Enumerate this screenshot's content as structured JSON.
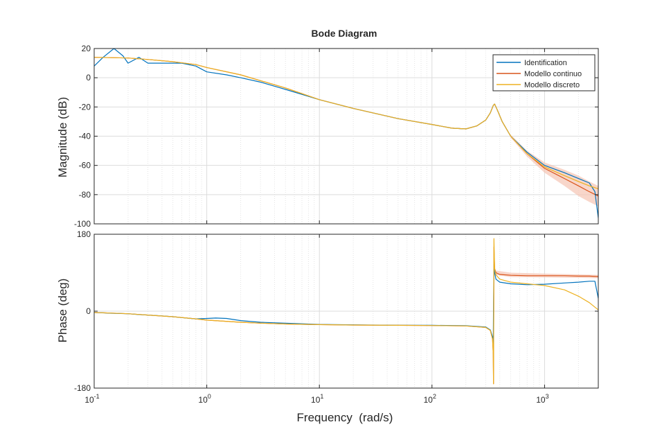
{
  "chart_data": {
    "type": "line",
    "title": "Bode Diagram",
    "xlabel": "Frequency  (rad/s)",
    "x_scale": "log",
    "xlim": [
      0.1,
      3000
    ],
    "x_ticks": [
      {
        "value": 0.1,
        "base": "10",
        "exp": "-1"
      },
      {
        "value": 1,
        "base": "10",
        "exp": "0"
      },
      {
        "value": 10,
        "base": "10",
        "exp": "1"
      },
      {
        "value": 100,
        "base": "10",
        "exp": "2"
      },
      {
        "value": 1000,
        "base": "10",
        "exp": "3"
      }
    ],
    "grid": true,
    "legend_position": "top-right",
    "colors": {
      "Identification": "#0072bd",
      "Modello continuo": "#d95319",
      "Modello discreto": "#edb120",
      "confidence": "#f5c4b4"
    },
    "series_names": [
      "Identification",
      "Modello continuo",
      "Modello discreto"
    ],
    "magnitude": {
      "ylabel": "Magnitude (dB)",
      "ylim": [
        -100,
        20
      ],
      "y_ticks": [
        "20",
        "0",
        "-20",
        "-40",
        "-60",
        "-80",
        "-100"
      ],
      "y_tick_values": [
        20,
        0,
        -20,
        -40,
        -60,
        -80,
        -100
      ],
      "series": [
        {
          "name": "Identification",
          "x": [
            0.1,
            0.12,
            0.15,
            0.18,
            0.2,
            0.25,
            0.3,
            0.4,
            0.5,
            0.6,
            0.8,
            1,
            1.5,
            2,
            3,
            5,
            10,
            20,
            50,
            100,
            150,
            200,
            250,
            300,
            330,
            350,
            360,
            380,
            420,
            500,
            700,
            1000,
            1500,
            2000,
            2500,
            2800,
            3000
          ],
          "y": [
            8,
            14,
            20,
            15,
            10,
            14,
            10,
            10,
            10,
            10,
            8,
            4,
            2,
            0,
            -3,
            -8,
            -15,
            -21,
            -28,
            -32,
            -34.5,
            -35,
            -33,
            -29,
            -24,
            -19,
            -18,
            -22,
            -30,
            -40,
            -51,
            -60,
            -65,
            -69,
            -72,
            -78,
            -96
          ]
        },
        {
          "name": "Modello continuo",
          "x": [
            0.1,
            0.2,
            0.3,
            0.5,
            0.8,
            1,
            2,
            3,
            5,
            10,
            20,
            50,
            100,
            150,
            200,
            250,
            300,
            330,
            350,
            360,
            380,
            420,
            500,
            700,
            1000,
            1500,
            2000,
            2500,
            3000
          ],
          "y": [
            14,
            13.5,
            12.5,
            11,
            9,
            7,
            2,
            -2,
            -7,
            -15,
            -21,
            -28,
            -32,
            -34.5,
            -35,
            -33,
            -29,
            -24,
            -19,
            -18,
            -22,
            -30,
            -40,
            -52,
            -62,
            -69,
            -74,
            -78,
            -81
          ]
        },
        {
          "name": "Modello discreto",
          "x": [
            0.1,
            0.2,
            0.3,
            0.5,
            0.8,
            1,
            2,
            3,
            5,
            10,
            20,
            50,
            100,
            150,
            200,
            250,
            300,
            330,
            350,
            360,
            380,
            420,
            500,
            700,
            1000,
            1500,
            2000,
            2500,
            3000
          ],
          "y": [
            14,
            13.5,
            12.5,
            11,
            9,
            7,
            2,
            -2,
            -7,
            -15,
            -21,
            -28,
            -32,
            -34.5,
            -35,
            -33,
            -29,
            -24,
            -19,
            -18,
            -22,
            -30,
            -40,
            -52,
            -61,
            -67,
            -71,
            -74,
            -76
          ]
        }
      ],
      "confidence_band": {
        "x": [
          500,
          700,
          1000,
          1500,
          2000,
          2500,
          3000
        ],
        "upper": [
          -39,
          -50,
          -58,
          -63,
          -67,
          -71,
          -74
        ],
        "lower": [
          -41,
          -54,
          -65,
          -74,
          -81,
          -85,
          -88
        ]
      }
    },
    "phase": {
      "ylabel": "Phase (deg)",
      "ylim": [
        -180,
        180
      ],
      "y_ticks": [
        "180",
        "0",
        "-180"
      ],
      "y_tick_values": [
        180,
        0,
        -180
      ],
      "series": [
        {
          "name": "Identification",
          "x": [
            0.1,
            0.15,
            0.2,
            0.25,
            0.3,
            0.4,
            0.5,
            0.6,
            0.8,
            1,
            1.2,
            1.5,
            2,
            3,
            5,
            10,
            20,
            50,
            100,
            200,
            300,
            330,
            345,
            350,
            352,
            355,
            360,
            370,
            400,
            500,
            700,
            1000,
            1500,
            2000,
            2500,
            2800,
            3000
          ],
          "y": [
            -3,
            -5,
            -6,
            -8,
            -9,
            -11,
            -13,
            -15,
            -18,
            -17,
            -16,
            -17,
            -22,
            -26,
            -28,
            -31,
            -32,
            -33,
            -33,
            -34,
            -37,
            -44,
            -60,
            -80,
            20,
            110,
            90,
            75,
            68,
            64,
            62,
            63,
            66,
            68,
            70,
            70,
            30
          ]
        },
        {
          "name": "Modello continuo",
          "x": [
            0.1,
            0.2,
            0.3,
            0.5,
            0.8,
            1,
            2,
            3,
            5,
            10,
            20,
            50,
            100,
            200,
            300,
            330,
            345,
            350,
            352,
            355,
            360,
            370,
            400,
            500,
            700,
            1000,
            1500,
            2000,
            2500,
            3000
          ],
          "y": [
            -3,
            -6,
            -9,
            -13,
            -18,
            -21,
            -26,
            -28,
            -30,
            -31.5,
            -32.5,
            -33,
            -33.5,
            -34.5,
            -38,
            -45,
            -65,
            -100,
            -170,
            150,
            100,
            90,
            86,
            84,
            83,
            83,
            83,
            82,
            82,
            81
          ]
        },
        {
          "name": "Modello discreto",
          "x": [
            0.1,
            0.2,
            0.3,
            0.5,
            0.8,
            1,
            2,
            3,
            5,
            10,
            20,
            50,
            100,
            200,
            300,
            330,
            345,
            350,
            352,
            355,
            360,
            370,
            400,
            500,
            700,
            1000,
            1500,
            2000,
            2500,
            3000
          ],
          "y": [
            -3,
            -6,
            -9,
            -13,
            -18,
            -21,
            -26,
            -28,
            -30,
            -31.5,
            -32.5,
            -33,
            -33.5,
            -34.5,
            -38,
            -45,
            -65,
            -100,
            -170,
            170,
            100,
            85,
            75,
            68,
            64,
            60,
            50,
            35,
            20,
            3
          ]
        }
      ],
      "confidence_band": {
        "x": [
          370,
          500,
          1000,
          2000,
          3000
        ],
        "upper": [
          95,
          90,
          88,
          86,
          85
        ],
        "lower": [
          85,
          80,
          79,
          78,
          77
        ]
      }
    }
  }
}
